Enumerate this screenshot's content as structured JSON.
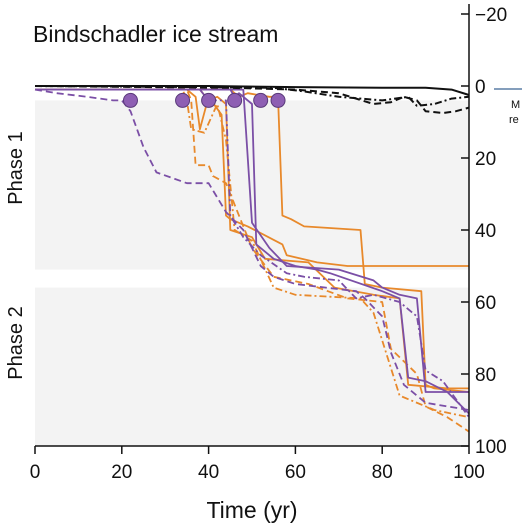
{
  "chart_data": {
    "type": "line",
    "title": "Bindschadler ice stream",
    "xlabel": "Time (yr)",
    "ylabel": "",
    "xlim": [
      0,
      100
    ],
    "ylim": [
      -20,
      100
    ],
    "y_inverted": true,
    "x_ticks": [
      0,
      20,
      40,
      60,
      80,
      100
    ],
    "y_ticks": [
      -20,
      0,
      20,
      40,
      60,
      80,
      100
    ],
    "phases": [
      {
        "label": "Phase 1",
        "y_range": [
          4,
          51
        ]
      },
      {
        "label": "Phase 2",
        "y_range": [
          56,
          100
        ]
      }
    ],
    "legend_fragments": [
      "M",
      "re"
    ],
    "colors": {
      "orange": "#e8892b",
      "purple": "#7b4fa6",
      "black": "#111111",
      "phase_band": "#f3f3f3",
      "marker": "#8e5fb3"
    },
    "markers": {
      "x": [
        22,
        34,
        40,
        46,
        52,
        56
      ],
      "y": [
        4,
        4,
        4,
        4,
        4,
        4
      ]
    },
    "series": [
      {
        "color": "orange",
        "dash": "solid",
        "points": [
          [
            0,
            1
          ],
          [
            35,
            1
          ],
          [
            37,
            3
          ],
          [
            38,
            12
          ],
          [
            40,
            3
          ],
          [
            43,
            8
          ],
          [
            44,
            36
          ],
          [
            45,
            37
          ],
          [
            49,
            39
          ],
          [
            57,
            44
          ],
          [
            58,
            47
          ],
          [
            65,
            49
          ],
          [
            72,
            50
          ],
          [
            100,
            50
          ]
        ]
      },
      {
        "color": "orange",
        "dash": "solid",
        "points": [
          [
            0,
            1
          ],
          [
            45,
            1
          ],
          [
            47,
            3
          ],
          [
            49,
            2
          ],
          [
            54,
            3
          ],
          [
            56,
            3
          ],
          [
            57,
            36
          ],
          [
            59,
            37
          ],
          [
            62,
            39
          ],
          [
            75,
            40
          ],
          [
            76,
            55
          ],
          [
            80,
            56
          ],
          [
            89,
            57
          ],
          [
            90,
            83
          ],
          [
            92,
            84
          ],
          [
            100,
            85
          ]
        ]
      },
      {
        "color": "orange",
        "dash": "solid",
        "points": [
          [
            0,
            1
          ],
          [
            38,
            1
          ],
          [
            40,
            4
          ],
          [
            42,
            3
          ],
          [
            44,
            5
          ],
          [
            45,
            40
          ],
          [
            50,
            42
          ],
          [
            53,
            48
          ],
          [
            63,
            49
          ],
          [
            69,
            56
          ],
          [
            78,
            58
          ],
          [
            84,
            59
          ],
          [
            86,
            83
          ],
          [
            95,
            84
          ],
          [
            100,
            84
          ]
        ]
      },
      {
        "color": "orange",
        "dash": "dashed",
        "points": [
          [
            0,
            1
          ],
          [
            35,
            1
          ],
          [
            36,
            4
          ],
          [
            37,
            22
          ],
          [
            40,
            22
          ],
          [
            41,
            25
          ],
          [
            44,
            27
          ],
          [
            50,
            45
          ],
          [
            55,
            53
          ],
          [
            63,
            55
          ],
          [
            72,
            59
          ],
          [
            80,
            60
          ],
          [
            82,
            73
          ],
          [
            88,
            80
          ],
          [
            90,
            89
          ],
          [
            95,
            92
          ],
          [
            100,
            96
          ]
        ]
      },
      {
        "color": "orange",
        "dash": "dashdot",
        "points": [
          [
            0,
            1
          ],
          [
            34,
            1
          ],
          [
            35,
            4
          ],
          [
            36,
            12
          ],
          [
            39,
            13
          ],
          [
            42,
            5
          ],
          [
            44,
            15
          ],
          [
            46,
            40
          ],
          [
            50,
            43
          ],
          [
            55,
            56
          ],
          [
            60,
            58
          ],
          [
            75,
            59
          ],
          [
            78,
            63
          ],
          [
            84,
            86
          ],
          [
            92,
            90
          ],
          [
            100,
            92
          ]
        ]
      },
      {
        "color": "purple",
        "dash": "solid",
        "points": [
          [
            0,
            1
          ],
          [
            48,
            1
          ],
          [
            50,
            38
          ],
          [
            54,
            45
          ],
          [
            58,
            50
          ],
          [
            70,
            51
          ],
          [
            78,
            54
          ],
          [
            80,
            56
          ],
          [
            84,
            58
          ],
          [
            88,
            59
          ],
          [
            90,
            85
          ],
          [
            95,
            85
          ],
          [
            100,
            91
          ]
        ]
      },
      {
        "color": "purple",
        "dash": "solid",
        "points": [
          [
            0,
            1
          ],
          [
            45,
            1
          ],
          [
            46,
            3
          ],
          [
            47,
            2
          ],
          [
            50,
            5
          ],
          [
            51,
            44
          ],
          [
            55,
            48
          ],
          [
            60,
            50
          ],
          [
            65,
            51
          ],
          [
            68,
            52
          ],
          [
            80,
            57
          ],
          [
            84,
            59
          ],
          [
            86,
            81
          ],
          [
            90,
            82
          ],
          [
            95,
            85
          ],
          [
            100,
            85
          ]
        ]
      },
      {
        "color": "purple",
        "dash": "dashed",
        "points": [
          [
            0,
            1
          ],
          [
            5,
            2
          ],
          [
            12,
            3
          ],
          [
            18,
            4
          ],
          [
            20,
            4
          ],
          [
            22,
            7
          ],
          [
            25,
            17
          ],
          [
            28,
            24
          ],
          [
            35,
            27
          ],
          [
            40,
            27
          ],
          [
            44,
            35
          ],
          [
            48,
            40
          ],
          [
            52,
            50
          ],
          [
            55,
            53
          ],
          [
            60,
            55
          ],
          [
            74,
            57
          ],
          [
            76,
            59
          ],
          [
            80,
            64
          ],
          [
            82,
            74
          ],
          [
            85,
            83
          ],
          [
            90,
            88
          ],
          [
            100,
            90
          ]
        ]
      },
      {
        "color": "purple",
        "dash": "dashdot",
        "points": [
          [
            0,
            1
          ],
          [
            38,
            1
          ],
          [
            40,
            4
          ],
          [
            44,
            4
          ],
          [
            45,
            36
          ],
          [
            48,
            42
          ],
          [
            52,
            47
          ],
          [
            58,
            52
          ],
          [
            62,
            53
          ],
          [
            70,
            54
          ],
          [
            74,
            59
          ],
          [
            78,
            58
          ],
          [
            84,
            60
          ],
          [
            88,
            64
          ],
          [
            90,
            79
          ],
          [
            94,
            82
          ],
          [
            100,
            92
          ]
        ]
      },
      {
        "color": "black",
        "dash": "solid",
        "points": [
          [
            0,
            0
          ],
          [
            40,
            0
          ],
          [
            60,
            0.3
          ],
          [
            80,
            0.5
          ],
          [
            90,
            0.5
          ],
          [
            96,
            1
          ],
          [
            100,
            2.5
          ]
        ]
      },
      {
        "color": "black",
        "dash": "dashed",
        "points": [
          [
            0,
            0
          ],
          [
            45,
            0.5
          ],
          [
            60,
            1
          ],
          [
            70,
            2
          ],
          [
            78,
            5
          ],
          [
            82,
            4.5
          ],
          [
            85,
            3
          ],
          [
            88,
            4
          ],
          [
            90,
            7
          ],
          [
            94,
            7.5
          ],
          [
            97,
            7
          ],
          [
            100,
            6
          ]
        ]
      },
      {
        "color": "black",
        "dash": "dashdot",
        "points": [
          [
            0,
            0
          ],
          [
            40,
            0.3
          ],
          [
            55,
            0.5
          ],
          [
            62,
            1.5
          ],
          [
            70,
            3
          ],
          [
            75,
            3.5
          ],
          [
            80,
            4
          ],
          [
            86,
            3
          ],
          [
            88,
            5.5
          ],
          [
            92,
            5
          ],
          [
            96,
            3.5
          ],
          [
            100,
            3
          ]
        ]
      }
    ]
  }
}
